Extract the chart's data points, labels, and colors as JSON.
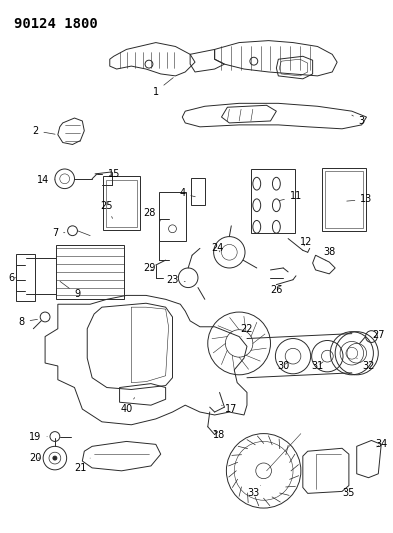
{
  "title": "90124 1800",
  "bg_color": "#ffffff",
  "line_color": "#2a2a2a",
  "text_color": "#000000",
  "title_fontsize": 10,
  "label_fontsize": 7,
  "fig_width": 3.93,
  "fig_height": 5.33,
  "dpi": 100
}
